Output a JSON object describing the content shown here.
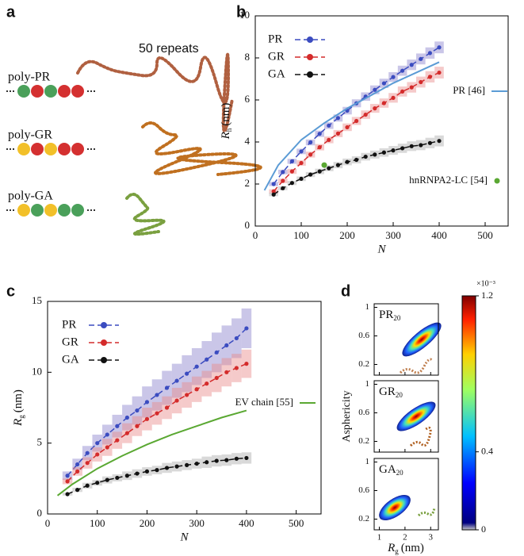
{
  "panel_a": {
    "label": "a",
    "heading": "50 repeats",
    "rows": [
      "poly-PR",
      "poly-GR",
      "poly-GA"
    ]
  },
  "chart_data": [
    {
      "type": "line",
      "label": "b",
      "xlabel": "N",
      "ylabel": {
        "symbol": "R",
        "sub": "h",
        "unit": "(nm)"
      },
      "xlim": [
        0,
        550
      ],
      "xticks": [
        0,
        100,
        200,
        300,
        400,
        500
      ],
      "ylim": [
        0,
        10
      ],
      "yticks": [
        0,
        2,
        4,
        6,
        8,
        10
      ],
      "x": [
        40,
        60,
        80,
        100,
        120,
        140,
        160,
        180,
        200,
        220,
        240,
        260,
        280,
        300,
        320,
        340,
        360,
        380,
        400
      ],
      "series": [
        {
          "name": "PR",
          "color": "#3b4cc0",
          "band_color": "#8a80cc",
          "style": "dashed-dots",
          "values": [
            2.0,
            2.57,
            3.08,
            3.55,
            3.98,
            4.39,
            4.78,
            5.14,
            5.49,
            5.84,
            6.16,
            6.48,
            6.79,
            7.09,
            7.39,
            7.67,
            7.95,
            8.23,
            8.5
          ],
          "errors": [
            0.1,
            0.11,
            0.12,
            0.13,
            0.14,
            0.15,
            0.16,
            0.17,
            0.18,
            0.19,
            0.2,
            0.21,
            0.22,
            0.23,
            0.24,
            0.25,
            0.26,
            0.27,
            0.28
          ]
        },
        {
          "name": "GR",
          "color": "#d42b2b",
          "band_color": "#e88a8a",
          "style": "dashed-dots",
          "values": [
            1.65,
            2.15,
            2.6,
            3.0,
            3.4,
            3.75,
            4.1,
            4.4,
            4.7,
            5.0,
            5.3,
            5.6,
            5.85,
            6.1,
            6.4,
            6.6,
            6.85,
            7.1,
            7.3
          ],
          "errors": [
            0.1,
            0.11,
            0.12,
            0.13,
            0.14,
            0.15,
            0.16,
            0.17,
            0.18,
            0.19,
            0.2,
            0.21,
            0.22,
            0.23,
            0.24,
            0.25,
            0.26,
            0.27,
            0.28
          ]
        },
        {
          "name": "GA",
          "color": "#111111",
          "band_color": "#aaaaaa",
          "style": "dashed-dots",
          "values": [
            1.5,
            1.8,
            2.05,
            2.25,
            2.45,
            2.6,
            2.75,
            2.9,
            3.05,
            3.15,
            3.3,
            3.4,
            3.5,
            3.6,
            3.7,
            3.8,
            3.85,
            3.95,
            4.05
          ],
          "errors": [
            0.08,
            0.09,
            0.1,
            0.11,
            0.12,
            0.13,
            0.14,
            0.15,
            0.16,
            0.17,
            0.18,
            0.19,
            0.2,
            0.21,
            0.22,
            0.23,
            0.24,
            0.25,
            0.26
          ]
        },
        {
          "name": "PR [46]",
          "color": "#5b9bd5",
          "style": "line",
          "x": [
            20,
            50,
            100,
            150,
            200,
            250,
            300,
            350,
            400
          ],
          "values": [
            1.7,
            2.9,
            4.1,
            4.9,
            5.6,
            6.2,
            6.8,
            7.3,
            7.8
          ]
        },
        {
          "name": "hnRNPA2-LC [54]",
          "color": "#5aa832",
          "style": "dot",
          "x": [
            150
          ],
          "values": [
            2.9
          ]
        }
      ]
    },
    {
      "type": "line",
      "label": "c",
      "xlabel": "N",
      "ylabel": {
        "symbol": "R",
        "sub": "g",
        "unit": "(nm)"
      },
      "xlim": [
        0,
        550
      ],
      "xticks": [
        0,
        100,
        200,
        300,
        400,
        500
      ],
      "ylim": [
        0,
        15
      ],
      "yticks": [
        0,
        5,
        10,
        15
      ],
      "x": [
        40,
        60,
        80,
        100,
        120,
        140,
        160,
        180,
        200,
        220,
        240,
        260,
        280,
        300,
        320,
        340,
        360,
        380,
        400
      ],
      "series": [
        {
          "name": "PR",
          "color": "#3b4cc0",
          "band_color": "#8a80cc",
          "style": "dashed-dots",
          "values": [
            2.7,
            3.5,
            4.3,
            5.0,
            5.6,
            6.2,
            6.8,
            7.3,
            7.9,
            8.4,
            8.9,
            9.4,
            9.9,
            10.4,
            10.9,
            11.4,
            11.9,
            12.4,
            13.1
          ],
          "errors": [
            0.3,
            0.4,
            0.5,
            0.6,
            0.7,
            0.8,
            0.9,
            1.0,
            1.1,
            1.1,
            1.2,
            1.2,
            1.3,
            1.3,
            1.3,
            1.4,
            1.4,
            1.4,
            1.4
          ]
        },
        {
          "name": "GR",
          "color": "#d42b2b",
          "band_color": "#e88a8a",
          "style": "dashed-dots",
          "values": [
            2.3,
            3.0,
            3.6,
            4.2,
            4.7,
            5.2,
            5.7,
            6.2,
            6.7,
            7.1,
            7.5,
            8.0,
            8.4,
            8.8,
            9.2,
            9.6,
            10.0,
            10.3,
            10.6
          ],
          "errors": [
            0.2,
            0.3,
            0.4,
            0.5,
            0.6,
            0.6,
            0.7,
            0.7,
            0.8,
            0.8,
            0.8,
            0.9,
            0.9,
            0.9,
            0.9,
            1.0,
            1.0,
            1.0,
            1.0
          ]
        },
        {
          "name": "GA",
          "color": "#111111",
          "band_color": "#aaaaaa",
          "style": "dashed-dots",
          "values": [
            1.4,
            1.7,
            2.0,
            2.2,
            2.4,
            2.55,
            2.7,
            2.85,
            3.0,
            3.1,
            3.25,
            3.35,
            3.45,
            3.55,
            3.65,
            3.75,
            3.8,
            3.9,
            3.95
          ],
          "errors": [
            0.1,
            0.15,
            0.2,
            0.2,
            0.25,
            0.25,
            0.3,
            0.3,
            0.3,
            0.3,
            0.35,
            0.35,
            0.35,
            0.35,
            0.4,
            0.4,
            0.4,
            0.4,
            0.4
          ]
        },
        {
          "name": "EV chain [55]",
          "color": "#5aa832",
          "style": "line",
          "x": [
            20,
            50,
            100,
            150,
            200,
            250,
            300,
            350,
            400
          ],
          "values": [
            1.3,
            2.1,
            3.2,
            4.1,
            4.9,
            5.6,
            6.2,
            6.8,
            7.3
          ]
        }
      ]
    }
  ],
  "panel_d": {
    "label": "d",
    "ylabel": "Asphericity",
    "xlabel": {
      "symbol": "R",
      "sub": "g",
      "unit": "(nm)"
    },
    "panels": [
      {
        "name": "PR",
        "sub": "20"
      },
      {
        "name": "GR",
        "sub": "20"
      },
      {
        "name": "GA",
        "sub": "20"
      }
    ],
    "xlim": [
      0.8,
      3.3
    ],
    "xticks": [
      1,
      2,
      3
    ],
    "ylim": [
      0.05,
      1.05
    ],
    "yticks": [
      0.2,
      0.6,
      1
    ],
    "colorbar": {
      "lim": [
        0,
        1.2
      ],
      "ticks": [
        0,
        0.4,
        1.2
      ],
      "exponent": "×10⁻³"
    }
  }
}
